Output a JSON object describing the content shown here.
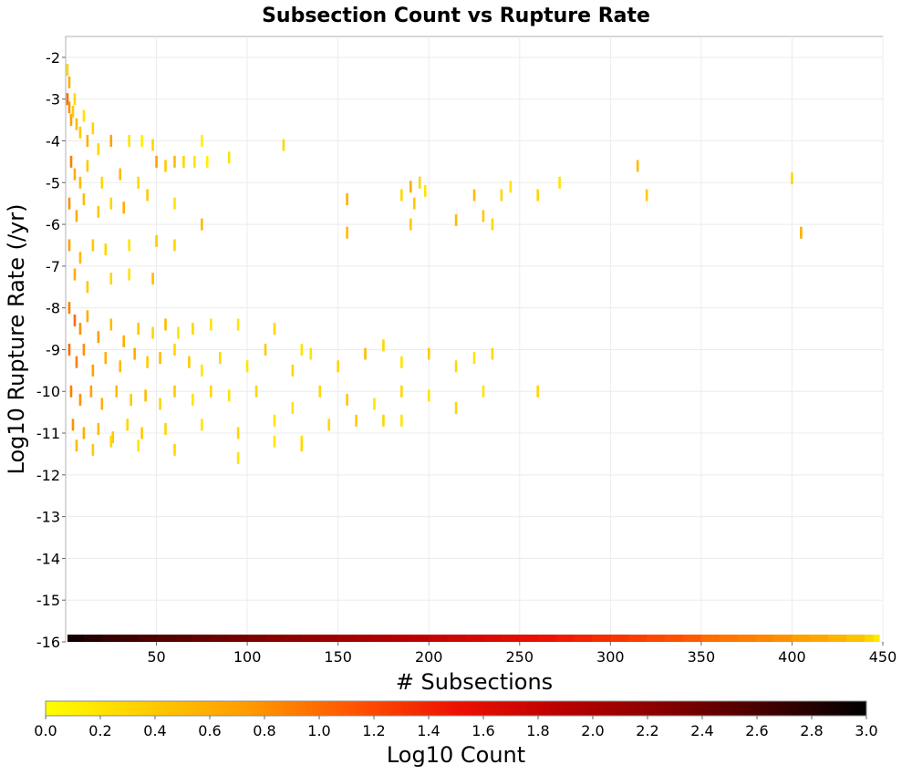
{
  "chart_data": {
    "type": "heatmap",
    "title": "Subsection Count vs Rupture Rate",
    "xlabel": "# Subsections",
    "ylabel": "Log10 Rupture Rate (/yr)",
    "xlim": [
      0,
      450
    ],
    "ylim": [
      -16,
      -1.5
    ],
    "x_ticks": [
      50,
      100,
      150,
      200,
      250,
      300,
      350,
      400,
      450
    ],
    "y_ticks": [
      -2,
      -3,
      -4,
      -5,
      -6,
      -7,
      -8,
      -9,
      -10,
      -11,
      -12,
      -13,
      -14,
      -15,
      -16
    ],
    "grid": true,
    "colorbar": {
      "label": "Log10 Count",
      "range": [
        0.0,
        3.0
      ],
      "ticks": [
        "0.0",
        "0.2",
        "0.4",
        "0.6",
        "0.8",
        "1.0",
        "1.2",
        "1.4",
        "1.6",
        "1.8",
        "2.0",
        "2.2",
        "2.4",
        "2.6",
        "2.8",
        "3.0"
      ],
      "colors": [
        "#ffff00",
        "#ffcc00",
        "#ff9900",
        "#ff5500",
        "#ee1100",
        "#bb0000",
        "#880000",
        "#440000",
        "#000000"
      ]
    },
    "bottom_row": {
      "y": -16,
      "comment_free_values": [
        [
          1,
          2.9
        ],
        [
          10,
          2.8
        ],
        [
          20,
          2.7
        ],
        [
          30,
          2.65
        ],
        [
          40,
          2.6
        ],
        [
          50,
          2.55
        ],
        [
          60,
          2.5
        ],
        [
          70,
          2.45
        ],
        [
          80,
          2.4
        ],
        [
          90,
          2.35
        ],
        [
          100,
          2.3
        ],
        [
          110,
          2.25
        ],
        [
          120,
          2.2
        ],
        [
          130,
          2.15
        ],
        [
          140,
          2.1
        ],
        [
          150,
          2.05
        ],
        [
          160,
          2.0
        ],
        [
          170,
          1.95
        ],
        [
          180,
          1.9
        ],
        [
          190,
          1.85
        ],
        [
          200,
          1.8
        ],
        [
          210,
          1.75
        ],
        [
          220,
          1.7
        ],
        [
          230,
          1.65
        ],
        [
          240,
          1.6
        ],
        [
          250,
          1.55
        ],
        [
          260,
          1.5
        ],
        [
          270,
          1.45
        ],
        [
          280,
          1.4
        ],
        [
          290,
          1.35
        ],
        [
          300,
          1.3
        ],
        [
          310,
          1.25
        ],
        [
          320,
          1.2
        ],
        [
          330,
          1.15
        ],
        [
          340,
          1.1
        ],
        [
          350,
          1.0
        ],
        [
          360,
          0.95
        ],
        [
          370,
          0.9
        ],
        [
          380,
          0.85
        ],
        [
          390,
          0.8
        ],
        [
          400,
          0.7
        ],
        [
          410,
          0.65
        ],
        [
          420,
          0.55
        ],
        [
          430,
          0.45
        ],
        [
          440,
          0.3
        ],
        [
          445,
          0.15
        ]
      ]
    },
    "cells": [
      [
        1,
        -2.3,
        0.3
      ],
      [
        2,
        -2.6,
        0.6
      ],
      [
        1,
        -3.0,
        1.0
      ],
      [
        2,
        -3.2,
        0.8
      ],
      [
        3,
        -3.5,
        0.7
      ],
      [
        4,
        -3.3,
        0.4
      ],
      [
        5,
        -3.0,
        0.3
      ],
      [
        6,
        -3.6,
        0.5
      ],
      [
        8,
        -3.8,
        0.4
      ],
      [
        10,
        -3.4,
        0.2
      ],
      [
        12,
        -4.0,
        0.6
      ],
      [
        15,
        -3.7,
        0.3
      ],
      [
        18,
        -4.2,
        0.3
      ],
      [
        25,
        -4.0,
        0.7
      ],
      [
        35,
        -4.0,
        0.2
      ],
      [
        42,
        -4.0,
        0.1
      ],
      [
        48,
        -4.1,
        0.3
      ],
      [
        75,
        -4.0,
        0.1
      ],
      [
        120,
        -4.1,
        0.3
      ],
      [
        3,
        -4.5,
        0.9
      ],
      [
        5,
        -4.8,
        0.6
      ],
      [
        8,
        -5.0,
        0.5
      ],
      [
        12,
        -4.6,
        0.4
      ],
      [
        20,
        -5.0,
        0.3
      ],
      [
        30,
        -4.8,
        0.5
      ],
      [
        40,
        -5.0,
        0.3
      ],
      [
        50,
        -4.5,
        0.7
      ],
      [
        55,
        -4.6,
        0.4
      ],
      [
        60,
        -4.5,
        0.5
      ],
      [
        65,
        -4.5,
        0.3
      ],
      [
        71,
        -4.5,
        0.2
      ],
      [
        78,
        -4.5,
        0.1
      ],
      [
        90,
        -4.4,
        0.2
      ],
      [
        2,
        -5.5,
        0.8
      ],
      [
        6,
        -5.8,
        0.6
      ],
      [
        10,
        -5.4,
        0.5
      ],
      [
        18,
        -5.7,
        0.4
      ],
      [
        25,
        -5.5,
        0.3
      ],
      [
        32,
        -5.6,
        0.6
      ],
      [
        45,
        -5.3,
        0.4
      ],
      [
        60,
        -5.5,
        0.2
      ],
      [
        75,
        -6.0,
        0.5
      ],
      [
        155,
        -5.4,
        0.6
      ],
      [
        155,
        -6.2,
        0.5
      ],
      [
        185,
        -5.3,
        0.3
      ],
      [
        190,
        -5.1,
        0.6
      ],
      [
        192,
        -5.5,
        0.4
      ],
      [
        195,
        -5.0,
        0.3
      ],
      [
        198,
        -5.2,
        0.2
      ],
      [
        225,
        -5.3,
        0.5
      ],
      [
        230,
        -5.8,
        0.4
      ],
      [
        240,
        -5.3,
        0.3
      ],
      [
        245,
        -5.1,
        0.2
      ],
      [
        260,
        -5.3,
        0.3
      ],
      [
        272,
        -5.0,
        0.2
      ],
      [
        315,
        -4.6,
        0.5
      ],
      [
        320,
        -5.3,
        0.4
      ],
      [
        400,
        -4.9,
        0.3
      ],
      [
        405,
        -6.2,
        0.6
      ],
      [
        190,
        -6.0,
        0.4
      ],
      [
        215,
        -5.9,
        0.5
      ],
      [
        235,
        -6.0,
        0.3
      ],
      [
        2,
        -6.5,
        0.7
      ],
      [
        8,
        -6.8,
        0.5
      ],
      [
        15,
        -6.5,
        0.4
      ],
      [
        22,
        -6.6,
        0.3
      ],
      [
        35,
        -6.5,
        0.2
      ],
      [
        50,
        -6.4,
        0.4
      ],
      [
        60,
        -6.5,
        0.3
      ],
      [
        5,
        -7.2,
        0.6
      ],
      [
        12,
        -7.5,
        0.4
      ],
      [
        25,
        -7.3,
        0.3
      ],
      [
        35,
        -7.2,
        0.2
      ],
      [
        48,
        -7.3,
        0.5
      ],
      [
        2,
        -8.0,
        0.9
      ],
      [
        5,
        -8.3,
        1.0
      ],
      [
        8,
        -8.5,
        0.8
      ],
      [
        12,
        -8.2,
        0.6
      ],
      [
        18,
        -8.7,
        0.7
      ],
      [
        25,
        -8.4,
        0.5
      ],
      [
        32,
        -8.8,
        0.6
      ],
      [
        40,
        -8.5,
        0.4
      ],
      [
        48,
        -8.6,
        0.3
      ],
      [
        55,
        -8.4,
        0.5
      ],
      [
        62,
        -8.6,
        0.2
      ],
      [
        70,
        -8.5,
        0.3
      ],
      [
        80,
        -8.4,
        0.2
      ],
      [
        95,
        -8.4,
        0.2
      ],
      [
        115,
        -8.5,
        0.3
      ],
      [
        130,
        -9.0,
        0.2
      ],
      [
        2,
        -9.0,
        1.0
      ],
      [
        6,
        -9.3,
        0.9
      ],
      [
        10,
        -9.0,
        0.8
      ],
      [
        15,
        -9.5,
        0.7
      ],
      [
        22,
        -9.2,
        0.6
      ],
      [
        30,
        -9.4,
        0.5
      ],
      [
        38,
        -9.1,
        0.6
      ],
      [
        45,
        -9.3,
        0.4
      ],
      [
        52,
        -9.2,
        0.5
      ],
      [
        60,
        -9.0,
        0.3
      ],
      [
        68,
        -9.3,
        0.4
      ],
      [
        75,
        -9.5,
        0.2
      ],
      [
        85,
        -9.2,
        0.3
      ],
      [
        100,
        -9.4,
        0.2
      ],
      [
        110,
        -9.0,
        0.4
      ],
      [
        125,
        -9.5,
        0.3
      ],
      [
        135,
        -9.1,
        0.2
      ],
      [
        150,
        -9.4,
        0.3
      ],
      [
        165,
        -9.1,
        0.5
      ],
      [
        175,
        -8.9,
        0.3
      ],
      [
        185,
        -9.3,
        0.2
      ],
      [
        200,
        -9.1,
        0.4
      ],
      [
        215,
        -9.4,
        0.3
      ],
      [
        225,
        -9.2,
        0.2
      ],
      [
        235,
        -9.1,
        0.3
      ],
      [
        3,
        -10.0,
        0.9
      ],
      [
        8,
        -10.2,
        0.8
      ],
      [
        14,
        -10.0,
        0.7
      ],
      [
        20,
        -10.3,
        0.6
      ],
      [
        28,
        -10.0,
        0.5
      ],
      [
        36,
        -10.2,
        0.4
      ],
      [
        44,
        -10.1,
        0.5
      ],
      [
        52,
        -10.3,
        0.3
      ],
      [
        60,
        -10.0,
        0.4
      ],
      [
        70,
        -10.2,
        0.2
      ],
      [
        80,
        -10.0,
        0.3
      ],
      [
        90,
        -10.1,
        0.2
      ],
      [
        105,
        -10.0,
        0.3
      ],
      [
        125,
        -10.4,
        0.2
      ],
      [
        140,
        -10.0,
        0.3
      ],
      [
        155,
        -10.2,
        0.4
      ],
      [
        170,
        -10.3,
        0.2
      ],
      [
        185,
        -10.0,
        0.3
      ],
      [
        200,
        -10.1,
        0.2
      ],
      [
        215,
        -10.4,
        0.3
      ],
      [
        230,
        -10.0,
        0.2
      ],
      [
        260,
        -10.0,
        0.3
      ],
      [
        4,
        -10.8,
        0.8
      ],
      [
        10,
        -11.0,
        0.6
      ],
      [
        18,
        -10.9,
        0.5
      ],
      [
        26,
        -11.1,
        0.4
      ],
      [
        34,
        -10.8,
        0.3
      ],
      [
        42,
        -11.0,
        0.4
      ],
      [
        55,
        -10.9,
        0.3
      ],
      [
        75,
        -10.8,
        0.2
      ],
      [
        95,
        -11.0,
        0.3
      ],
      [
        115,
        -10.7,
        0.2
      ],
      [
        130,
        -11.2,
        0.2
      ],
      [
        145,
        -10.8,
        0.3
      ],
      [
        160,
        -10.7,
        0.4
      ],
      [
        175,
        -10.7,
        0.3
      ],
      [
        185,
        -10.7,
        0.2
      ],
      [
        6,
        -11.3,
        0.5
      ],
      [
        15,
        -11.4,
        0.4
      ],
      [
        25,
        -11.2,
        0.3
      ],
      [
        40,
        -11.3,
        0.2
      ],
      [
        60,
        -11.4,
        0.3
      ],
      [
        95,
        -11.6,
        0.2
      ],
      [
        115,
        -11.2,
        0.2
      ],
      [
        130,
        -11.3,
        0.3
      ]
    ]
  }
}
